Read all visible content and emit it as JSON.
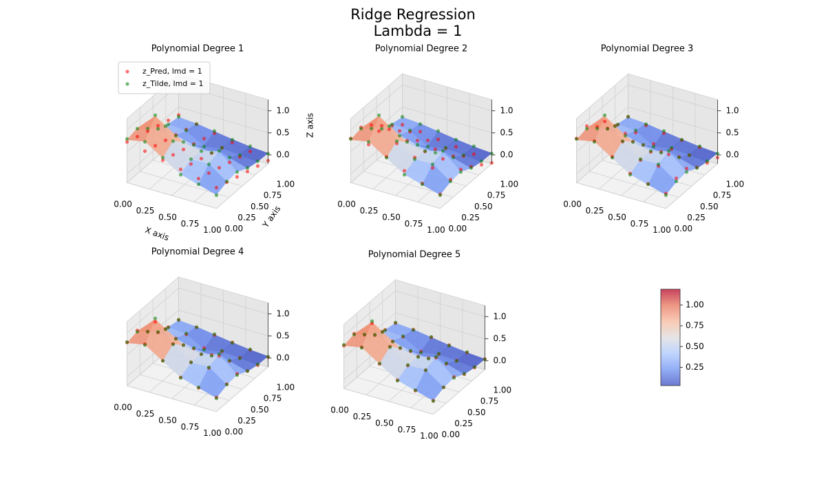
{
  "chart_data": {
    "type": "surface3d",
    "title": "Ridge Regression",
    "subtitle": "Lambda = 1",
    "x": [
      0,
      0.2,
      0.4,
      0.6,
      0.8,
      1
    ],
    "y": [
      0,
      0.2,
      0.4,
      0.6,
      0.8,
      1
    ],
    "z": [
      [
        0.77,
        0.85,
        0.59,
        0.34,
        0.22,
        0.11
      ],
      [
        0.83,
        1.22,
        0.78,
        0.47,
        0.49,
        0.2
      ],
      [
        0.61,
        0.8,
        0.54,
        0.47,
        0.57,
        0.23
      ],
      [
        0.4,
        0.38,
        0.27,
        0.23,
        0.22,
        0.1
      ],
      [
        0.32,
        0.28,
        0.05,
        0.12,
        0.09,
        0.05
      ],
      [
        0.27,
        0.24,
        0.18,
        0.12,
        0.07,
        0.04
      ]
    ],
    "xlim": [
      0,
      1
    ],
    "ylim": [
      0,
      1
    ],
    "zlim": [
      -0.2,
      1.25
    ],
    "xticks": [
      {
        "value": 0,
        "label": "0.00"
      },
      {
        "value": 0.25,
        "label": "0.25"
      },
      {
        "value": 0.5,
        "label": "0.50"
      },
      {
        "value": 0.75,
        "label": "0.75"
      },
      {
        "value": 1,
        "label": "1.00"
      }
    ],
    "yticks": [
      {
        "value": 0,
        "label": "0.00"
      },
      {
        "value": 0.25,
        "label": "0.25"
      },
      {
        "value": 0.5,
        "label": "0.50"
      },
      {
        "value": 0.75,
        "label": "0.75"
      },
      {
        "value": 1,
        "label": "1.00"
      }
    ],
    "zticks": [
      {
        "value": 0,
        "label": "0.0"
      },
      {
        "value": 0.5,
        "label": "0.5"
      },
      {
        "value": 1,
        "label": "1.0"
      }
    ],
    "grid": true,
    "colormap": [
      "#3b4cc0",
      "#6f92f3",
      "#aac7fd",
      "#dddcdc",
      "#f7b89c",
      "#e7745b",
      "#b40426"
    ],
    "colorbar": {
      "lim": [
        0.03,
        1.19
      ],
      "ticks": [
        {
          "value": 0.25,
          "label": "0.25"
        },
        {
          "value": 0.5,
          "label": "0.50"
        },
        {
          "value": 0.75,
          "label": "0.75"
        },
        {
          "value": 1,
          "label": "1.00"
        }
      ]
    },
    "subplots": [
      {
        "title": "Polynomial Degree 1",
        "xlabel": "X axis",
        "ylabel": "Y axis",
        "zlabel": "Z axis",
        "legend": "upper left",
        "series": [
          {
            "name": "z_Pred, lmd = 1",
            "color": "red",
            "values": [
              [
                0.72,
                0.63,
                0.54,
                0.45,
                0.36,
                0.27
              ],
              [
                0.64,
                0.55,
                0.46,
                0.37,
                0.28,
                0.19
              ],
              [
                0.56,
                0.47,
                0.38,
                0.29,
                0.2,
                0.11
              ],
              [
                0.48,
                0.39,
                0.3,
                0.21,
                0.12,
                0.03
              ],
              [
                0.4,
                0.31,
                0.22,
                0.13,
                0.04,
                -0.05
              ],
              [
                0.32,
                0.23,
                0.14,
                0.05,
                -0.04,
                -0.13
              ]
            ]
          },
          {
            "name": "z_Tilde, lmd = 1",
            "color": "green",
            "values": [
              [
                0.79,
                0.84,
                0.6,
                0.33,
                0.23,
                0.1
              ],
              [
                0.82,
                1.24,
                0.77,
                0.48,
                0.48,
                0.21
              ],
              [
                0.62,
                0.79,
                0.55,
                0.46,
                0.58,
                0.22
              ],
              [
                0.41,
                0.37,
                0.28,
                0.22,
                0.23,
                0.11
              ],
              [
                0.31,
                0.29,
                0.04,
                0.13,
                0.08,
                0.06
              ],
              [
                0.28,
                0.23,
                0.19,
                0.11,
                0.08,
                0.03
              ]
            ]
          }
        ]
      },
      {
        "title": "Polynomial Degree 2",
        "series": [
          {
            "color": "red",
            "values": [
              [
                0.8,
                0.78,
                0.62,
                0.42,
                0.25,
                0.12
              ],
              [
                0.85,
                0.88,
                0.72,
                0.52,
                0.4,
                0.25
              ],
              [
                0.7,
                0.72,
                0.58,
                0.45,
                0.4,
                0.28
              ],
              [
                0.48,
                0.48,
                0.38,
                0.3,
                0.26,
                0.14
              ],
              [
                0.28,
                0.26,
                0.18,
                0.12,
                0.06,
                -0.02
              ],
              [
                0.1,
                0.06,
                0,
                -0.05,
                -0.1,
                -0.18
              ]
            ]
          },
          {
            "color": "green",
            "values": [
              [
                0.79,
                0.84,
                0.6,
                0.33,
                0.23,
                0.1
              ],
              [
                0.82,
                1.24,
                0.77,
                0.48,
                0.48,
                0.21
              ],
              [
                0.62,
                0.79,
                0.55,
                0.46,
                0.58,
                0.22
              ],
              [
                0.41,
                0.37,
                0.28,
                0.22,
                0.23,
                0.11
              ],
              [
                0.31,
                0.29,
                0.04,
                0.13,
                0.08,
                0.06
              ],
              [
                0.28,
                0.23,
                0.19,
                0.11,
                0.08,
                0.03
              ]
            ]
          }
        ]
      },
      {
        "title": "Polynomial Degree 3",
        "series": [
          {
            "color": "red",
            "values": [
              [
                0.8,
                0.86,
                0.62,
                0.36,
                0.24,
                0.14
              ],
              [
                0.88,
                1.1,
                0.76,
                0.46,
                0.44,
                0.28
              ],
              [
                0.66,
                0.8,
                0.56,
                0.44,
                0.5,
                0.3
              ],
              [
                0.42,
                0.42,
                0.28,
                0.24,
                0.24,
                0.12
              ],
              [
                0.3,
                0.24,
                0.1,
                0.1,
                0.08,
                0.02
              ],
              [
                0.28,
                0.2,
                0.14,
                0.1,
                0.06,
                -0.06
              ]
            ]
          },
          {
            "color": "green",
            "values": [
              [
                0.79,
                0.84,
                0.6,
                0.33,
                0.23,
                0.1
              ],
              [
                0.82,
                1.24,
                0.77,
                0.48,
                0.48,
                0.21
              ],
              [
                0.62,
                0.79,
                0.55,
                0.46,
                0.58,
                0.22
              ],
              [
                0.41,
                0.37,
                0.28,
                0.22,
                0.23,
                0.11
              ],
              [
                0.31,
                0.29,
                0.04,
                0.13,
                0.08,
                0.06
              ],
              [
                0.28,
                0.23,
                0.19,
                0.11,
                0.08,
                0.03
              ]
            ]
          }
        ]
      },
      {
        "title": "Polynomial Degree 4",
        "series": [
          {
            "color": "red",
            "values": [
              [
                0.78,
                0.86,
                0.6,
                0.34,
                0.22,
                0.12
              ],
              [
                0.85,
                1.16,
                0.78,
                0.48,
                0.47,
                0.22
              ],
              [
                0.62,
                0.8,
                0.55,
                0.46,
                0.54,
                0.25
              ],
              [
                0.4,
                0.38,
                0.27,
                0.24,
                0.22,
                0.11
              ],
              [
                0.32,
                0.27,
                0.08,
                0.12,
                0.09,
                0.04
              ],
              [
                0.28,
                0.23,
                0.17,
                0.12,
                0.07,
                0.02
              ]
            ]
          },
          {
            "color": "green",
            "values": [
              [
                0.79,
                0.84,
                0.6,
                0.33,
                0.23,
                0.1
              ],
              [
                0.82,
                1.24,
                0.77,
                0.48,
                0.48,
                0.21
              ],
              [
                0.62,
                0.79,
                0.55,
                0.46,
                0.58,
                0.22
              ],
              [
                0.41,
                0.37,
                0.28,
                0.22,
                0.23,
                0.11
              ],
              [
                0.31,
                0.29,
                0.04,
                0.13,
                0.08,
                0.06
              ],
              [
                0.28,
                0.23,
                0.19,
                0.11,
                0.08,
                0.03
              ]
            ]
          }
        ]
      },
      {
        "title": "Polynomial Degree 5",
        "series": [
          {
            "color": "red",
            "values": [
              [
                0.77,
                0.85,
                0.59,
                0.34,
                0.22,
                0.11
              ],
              [
                0.84,
                1.19,
                0.78,
                0.47,
                0.48,
                0.21
              ],
              [
                0.61,
                0.8,
                0.54,
                0.47,
                0.56,
                0.24
              ],
              [
                0.4,
                0.38,
                0.27,
                0.23,
                0.22,
                0.1
              ],
              [
                0.32,
                0.28,
                0.06,
                0.12,
                0.09,
                0.05
              ],
              [
                0.27,
                0.24,
                0.18,
                0.12,
                0.07,
                0.04
              ]
            ]
          },
          {
            "color": "green",
            "values": [
              [
                0.79,
                0.84,
                0.6,
                0.33,
                0.23,
                0.1
              ],
              [
                0.82,
                1.24,
                0.77,
                0.48,
                0.48,
                0.21
              ],
              [
                0.62,
                0.79,
                0.55,
                0.46,
                0.58,
                0.22
              ],
              [
                0.41,
                0.37,
                0.28,
                0.22,
                0.23,
                0.11
              ],
              [
                0.31,
                0.29,
                0.04,
                0.13,
                0.08,
                0.06
              ],
              [
                0.28,
                0.23,
                0.19,
                0.11,
                0.08,
                0.03
              ]
            ]
          }
        ]
      }
    ]
  }
}
